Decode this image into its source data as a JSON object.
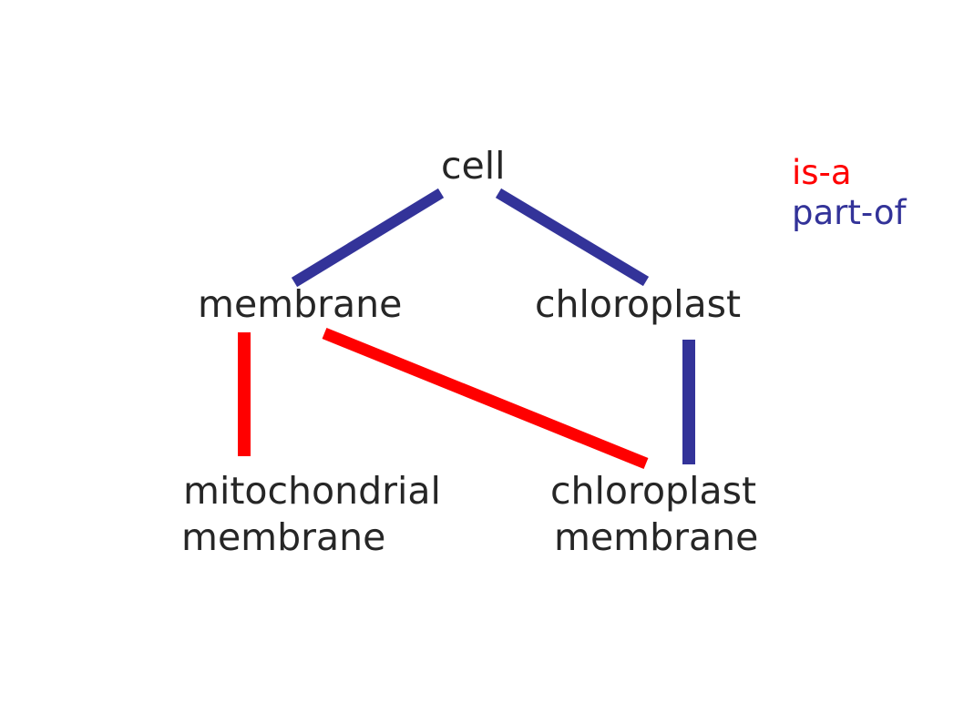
{
  "nodes": {
    "cell": "cell",
    "membrane": "membrane",
    "chloroplast": "chloroplast",
    "mitochondrial_membrane": [
      "mitochondrial",
      "membrane"
    ],
    "chloroplast_membrane": [
      "chloroplast",
      "membrane"
    ]
  },
  "legend": {
    "is_a": "is-a",
    "part_of": "part-of"
  },
  "relations": [
    {
      "from": "cell",
      "to": "membrane",
      "type": "part-of"
    },
    {
      "from": "cell",
      "to": "chloroplast",
      "type": "part-of"
    },
    {
      "from": "mitochondrial membrane",
      "to": "membrane",
      "type": "is-a"
    },
    {
      "from": "chloroplast membrane",
      "to": "membrane",
      "type": "is-a"
    },
    {
      "from": "chloroplast membrane",
      "to": "chloroplast",
      "type": "part-of"
    }
  ],
  "colors": {
    "is_a": "#ff0000",
    "part_of": "#333399",
    "text": "#262626"
  }
}
